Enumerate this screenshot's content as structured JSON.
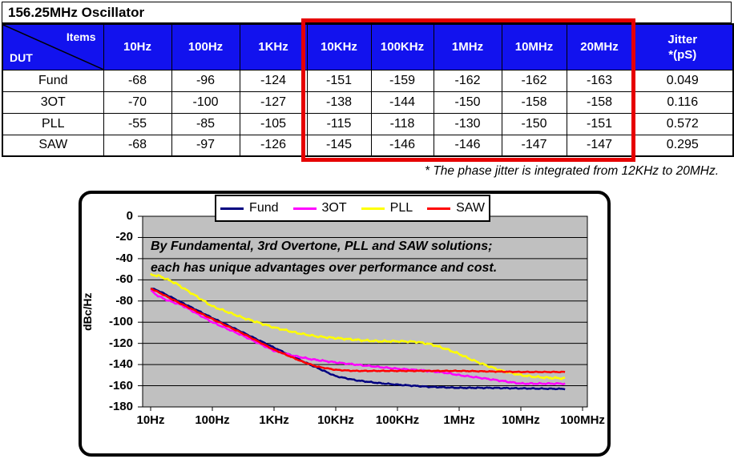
{
  "title": "156.25MHz Oscillator",
  "table": {
    "header_bg": "#1212ee",
    "highlight_color": "#e60000",
    "corner": {
      "top_label": "Items",
      "bottom_label": "DUT"
    },
    "freq_headers": [
      "10Hz",
      "100Hz",
      "1KHz",
      "10KHz",
      "100KHz",
      "1MHz",
      "10MHz",
      "20MHz"
    ],
    "jitter_header": {
      "line1": "Jitter",
      "line2": "*(pS)"
    },
    "rows": [
      {
        "dut": "Fund",
        "values": [
          "-68",
          "-96",
          "-124",
          "-151",
          "-159",
          "-162",
          "-162",
          "-163"
        ],
        "jitter": "0.049"
      },
      {
        "dut": "3OT",
        "values": [
          "-70",
          "-100",
          "-127",
          "-138",
          "-144",
          "-150",
          "-158",
          "-158"
        ],
        "jitter": "0.116"
      },
      {
        "dut": "PLL",
        "values": [
          "-55",
          "-85",
          "-105",
          "-115",
          "-118",
          "-130",
          "-150",
          "-151"
        ],
        "jitter": "0.572"
      },
      {
        "dut": "SAW",
        "values": [
          "-68",
          "-97",
          "-126",
          "-145",
          "-146",
          "-146",
          "-147",
          "-147"
        ],
        "jitter": "0.295"
      }
    ]
  },
  "footnote": "* The phase jitter is integrated from 12KHz to 20MHz.",
  "chart_data": {
    "type": "line",
    "plot_bg": "#c0c0c0",
    "grid": true,
    "legend_position": "top",
    "annotation": {
      "line1": "By Fundamental, 3rd Overtone, PLL and SAW solutions;",
      "line2": "each has unique advantages over performance and cost."
    },
    "x_axis": {
      "scale": "log",
      "range_hz": [
        10,
        100000000
      ],
      "tick_labels": [
        "10Hz",
        "100Hz",
        "1KHz",
        "10KHz",
        "100KHz",
        "1MHz",
        "10MHz",
        "100MHz"
      ]
    },
    "y_axis": {
      "label": "dBc/Hz",
      "range": [
        -180,
        0
      ],
      "ticks": [
        0,
        -20,
        -40,
        -60,
        -80,
        -100,
        -120,
        -140,
        -160,
        -180
      ]
    },
    "series": [
      {
        "name": "Fund",
        "color": "#000080",
        "noise_db": 0.6,
        "points_hz_db": [
          [
            10,
            -68
          ],
          [
            13,
            -70
          ],
          [
            100,
            -96
          ],
          [
            320,
            -110
          ],
          [
            1000,
            -124
          ],
          [
            3200,
            -138
          ],
          [
            10000,
            -151
          ],
          [
            22000,
            -155
          ],
          [
            50000,
            -157.5
          ],
          [
            100000,
            -159
          ],
          [
            320000,
            -161
          ],
          [
            1000000,
            -162
          ],
          [
            3200000,
            -162
          ],
          [
            10000000,
            -162.5
          ],
          [
            52000000,
            -163
          ]
        ]
      },
      {
        "name": "3OT",
        "color": "#ff00ff",
        "noise_db": 0.8,
        "points_hz_db": [
          [
            10,
            -70
          ],
          [
            13,
            -75
          ],
          [
            18,
            -79
          ],
          [
            32,
            -84
          ],
          [
            100,
            -100
          ],
          [
            320,
            -113
          ],
          [
            1000,
            -127
          ],
          [
            2000,
            -131.5
          ],
          [
            4000,
            -135
          ],
          [
            10000,
            -138
          ],
          [
            25000,
            -140.5
          ],
          [
            100000,
            -144
          ],
          [
            250000,
            -145.5
          ],
          [
            560000,
            -147.5
          ],
          [
            1000000,
            -150
          ],
          [
            2500000,
            -153
          ],
          [
            5000000,
            -155.5
          ],
          [
            10000000,
            -158
          ],
          [
            20000000,
            -158
          ],
          [
            52000000,
            -158
          ]
        ]
      },
      {
        "name": "PLL",
        "color": "#ffff00",
        "noise_db": 1.1,
        "points_hz_db": [
          [
            10,
            -55
          ],
          [
            14,
            -56.5
          ],
          [
            25,
            -63
          ],
          [
            100,
            -85
          ],
          [
            320,
            -96
          ],
          [
            1000,
            -105
          ],
          [
            2500,
            -110.5
          ],
          [
            5000,
            -113.5
          ],
          [
            10000,
            -115
          ],
          [
            25000,
            -117
          ],
          [
            50000,
            -118
          ],
          [
            100000,
            -118
          ],
          [
            200000,
            -118.5
          ],
          [
            355000,
            -121
          ],
          [
            630000,
            -125.5
          ],
          [
            1000000,
            -130
          ],
          [
            1600000,
            -135.5
          ],
          [
            2800000,
            -141
          ],
          [
            5000000,
            -146
          ],
          [
            10000000,
            -150
          ],
          [
            16000000,
            -151.5
          ],
          [
            28000000,
            -152.5
          ],
          [
            52000000,
            -153
          ]
        ]
      },
      {
        "name": "SAW",
        "color": "#ff0000",
        "noise_db": 0.5,
        "points_hz_db": [
          [
            10,
            -68
          ],
          [
            32,
            -83
          ],
          [
            100,
            -97
          ],
          [
            320,
            -111
          ],
          [
            1000,
            -126
          ],
          [
            1600,
            -131
          ],
          [
            2800,
            -137
          ],
          [
            5000,
            -142
          ],
          [
            10000,
            -145
          ],
          [
            20000,
            -146
          ],
          [
            100000,
            -146
          ],
          [
            320000,
            -146
          ],
          [
            1000000,
            -146
          ],
          [
            3200000,
            -146.5
          ],
          [
            10000000,
            -147
          ],
          [
            52000000,
            -147
          ]
        ]
      }
    ]
  }
}
